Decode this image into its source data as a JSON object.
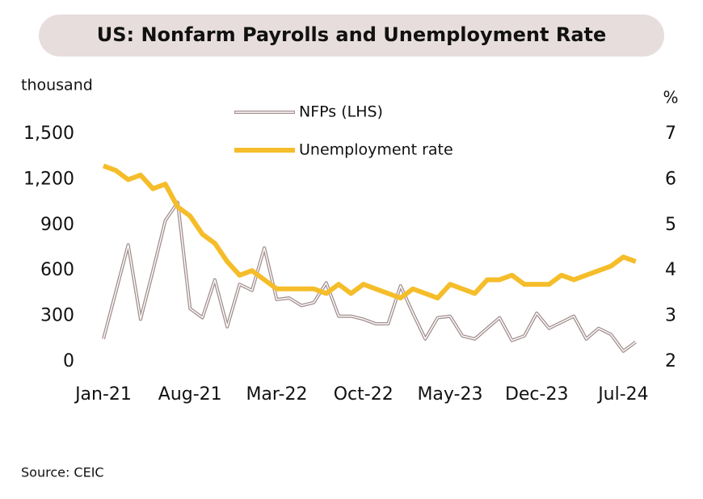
{
  "chart_data": {
    "type": "line",
    "title": "US: Nonfarm Payrolls and Unemployment Rate",
    "ylabel": "thousand",
    "y2label": "%",
    "source": "Source: CEIC",
    "categories": [
      "Jan-21",
      null,
      null,
      null,
      null,
      null,
      null,
      "Aug-21",
      null,
      null,
      null,
      null,
      null,
      null,
      "Mar-22",
      null,
      null,
      null,
      null,
      null,
      null,
      "Oct-22",
      null,
      null,
      null,
      null,
      null,
      null,
      "May-23",
      null,
      null,
      null,
      null,
      null,
      null,
      "Dec-23",
      null,
      null,
      null,
      null,
      null,
      null,
      "Jul-24",
      null
    ],
    "series": [
      {
        "name": "NFPs (LHS)",
        "color": "#a38f8f",
        "values": [
          150,
          460,
          770,
          280,
          600,
          930,
          1050,
          350,
          290,
          540,
          230,
          510,
          470,
          750,
          410,
          420,
          370,
          390,
          520,
          300,
          300,
          280,
          250,
          250,
          500,
          320,
          150,
          290,
          300,
          170,
          150,
          220,
          290,
          140,
          170,
          320,
          220,
          260,
          300,
          150,
          220,
          180,
          70,
          130
        ]
      },
      {
        "name": "Unemployment rate",
        "color": "#f5bd2a",
        "axis": "y2",
        "values": [
          6.3,
          6.2,
          6.0,
          6.1,
          5.8,
          5.9,
          5.4,
          5.2,
          4.8,
          4.6,
          4.2,
          3.9,
          4.0,
          3.8,
          3.6,
          3.6,
          3.6,
          3.6,
          3.5,
          3.7,
          3.5,
          3.7,
          3.6,
          3.5,
          3.4,
          3.6,
          3.5,
          3.4,
          3.7,
          3.6,
          3.5,
          3.8,
          3.8,
          3.9,
          3.7,
          3.7,
          3.7,
          3.9,
          3.8,
          3.9,
          4.0,
          4.1,
          4.3,
          4.2
        ]
      }
    ],
    "ylim": [
      0,
      1500
    ],
    "yticks": [
      0,
      300,
      600,
      900,
      {
        "value": 1200,
        "label": "1,200"
      },
      {
        "value": 1500,
        "label": "1,500"
      }
    ],
    "y2lim": [
      2,
      7
    ],
    "y2ticks": [
      2,
      3,
      4,
      5,
      6,
      7
    ]
  }
}
